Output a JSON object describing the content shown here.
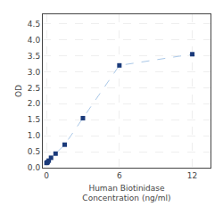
{
  "chart_data": {
    "type": "line",
    "x": [
      0,
      0.047,
      0.094,
      0.188,
      0.375,
      0.75,
      1.5,
      3,
      6,
      12
    ],
    "values": [
      0.148,
      0.158,
      0.175,
      0.22,
      0.31,
      0.44,
      0.72,
      1.55,
      3.2,
      3.55
    ],
    "color": "#aac8e8",
    "marker_color": "#1a3a7a",
    "marker": "square",
    "line_style": "dashed",
    "xlabel": "Human Biotinidase\nConcentration (ng/ml)",
    "ylabel": "OD",
    "xlim": [
      -0.3,
      13.5
    ],
    "ylim": [
      0,
      4.8
    ],
    "xticks": [
      0,
      6,
      12
    ],
    "yticks": [
      {
        "value": 0,
        "label": "0.0"
      },
      0.5,
      {
        "value": 1,
        "label": "1.0"
      },
      1.5,
      {
        "value": 2,
        "label": "2.0"
      },
      2.5,
      {
        "value": 3,
        "label": "3.0"
      },
      3.5,
      {
        "value": 4,
        "label": "4.0"
      },
      4.5
    ],
    "grid": true
  }
}
